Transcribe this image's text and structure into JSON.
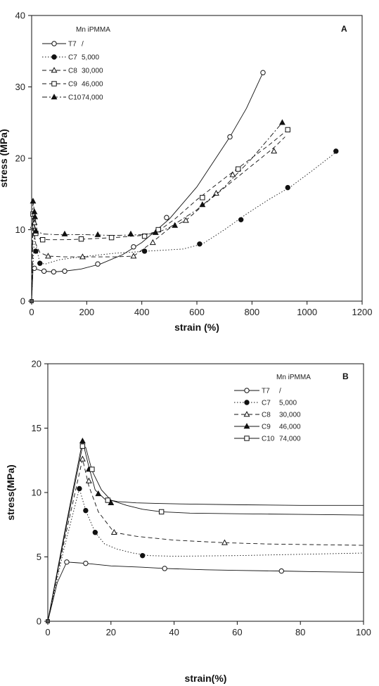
{
  "chart_data": [
    {
      "type": "line",
      "panel_letter": "A",
      "legend_header": "Mn iPMMA",
      "xlabel": "strain (%)",
      "ylabel": "stress (MPa)",
      "xlim": [
        0,
        1200
      ],
      "ylim": [
        0,
        40
      ],
      "xticks": [
        0,
        200,
        400,
        600,
        800,
        1000,
        1200
      ],
      "yticks": [
        0,
        10,
        20,
        30,
        40
      ],
      "grid": false,
      "legend_position": "top-left",
      "series": [
        {
          "name": "T7",
          "mn": "/",
          "marker": "circle-open",
          "dash": "solid",
          "x": [
            0,
            5,
            15,
            40,
            80,
            120,
            180,
            250,
            330,
            400,
            440,
            500,
            600,
            720,
            780,
            840
          ],
          "y": [
            0,
            4.6,
            4.5,
            4.2,
            4.1,
            4.2,
            4.5,
            5.2,
            6.5,
            8.2,
            9.5,
            11.5,
            16,
            23,
            27,
            32
          ],
          "marker_x": [
            10,
            45,
            80,
            120,
            240,
            370,
            490,
            720,
            840
          ],
          "marker_y": [
            4.6,
            4.2,
            4.1,
            4.2,
            5.2,
            7.6,
            11.7,
            23,
            32
          ]
        },
        {
          "name": "C7",
          "mn": "5,000",
          "marker": "circle-filled",
          "dash": "dot",
          "x": [
            0,
            10,
            20,
            30,
            50,
            100,
            180,
            300,
            420,
            550,
            620,
            700,
            780,
            860,
            940,
            1020,
            1110
          ],
          "y": [
            0,
            9.3,
            7.0,
            5.3,
            5.2,
            5.8,
            6.2,
            6.7,
            7.0,
            7.3,
            8.0,
            10.0,
            12.2,
            14.2,
            16.0,
            18.3,
            21
          ],
          "marker_x": [
            15,
            30,
            410,
            610,
            760,
            930,
            1105
          ],
          "marker_y": [
            7.0,
            5.3,
            7.0,
            8.0,
            11.4,
            15.9,
            21
          ]
        },
        {
          "name": "C8",
          "mn": "30,000",
          "marker": "triangle-open",
          "dash": "dash",
          "x": [
            0,
            5,
            15,
            30,
            60,
            120,
            200,
            300,
            370,
            430,
            500,
            560,
            640,
            720,
            800,
            880,
            920
          ],
          "y": [
            0,
            10.5,
            8.0,
            6.8,
            6.3,
            6.2,
            6.2,
            6.2,
            6.3,
            8.0,
            10.2,
            11.3,
            14.0,
            16.5,
            19.0,
            21.5,
            23
          ],
          "marker_x": [
            5,
            10,
            60,
            185,
            370,
            440,
            560,
            670,
            730,
            880
          ],
          "marker_y": [
            10.5,
            11.0,
            6.3,
            6.2,
            6.3,
            8.2,
            11.3,
            15.1,
            17.7,
            21
          ]
        },
        {
          "name": "C9",
          "mn": "46,000",
          "marker": "square-open",
          "dash": "dash",
          "x": [
            0,
            5,
            15,
            30,
            60,
            120,
            200,
            300,
            400,
            460,
            520,
            600,
            700,
            780,
            860,
            930
          ],
          "y": [
            0,
            12.2,
            9.5,
            8.7,
            8.6,
            8.6,
            8.7,
            8.9,
            9.2,
            9.8,
            11.5,
            14.2,
            17.2,
            19.5,
            21.8,
            24
          ],
          "marker_x": [
            5,
            15,
            40,
            180,
            290,
            410,
            460,
            620,
            750,
            930
          ],
          "marker_y": [
            12.2,
            9.5,
            8.6,
            8.7,
            8.9,
            9.1,
            10,
            14.5,
            18.5,
            24
          ]
        },
        {
          "name": "C10",
          "mn": "74,000",
          "marker": "triangle-filled",
          "dash": "dashdot",
          "x": [
            0,
            5,
            10,
            20,
            40,
            100,
            200,
            300,
            400,
            450,
            500,
            600,
            700,
            800,
            910
          ],
          "y": [
            0,
            14.0,
            12.5,
            9.8,
            9.4,
            9.3,
            9.3,
            9.2,
            9.3,
            9.5,
            10.3,
            12.8,
            16.0,
            20.0,
            25
          ],
          "marker_x": [
            5,
            10,
            12,
            15,
            120,
            240,
            360,
            450,
            520,
            620,
            910
          ],
          "marker_y": [
            14.0,
            12.5,
            11.8,
            9.8,
            9.4,
            9.3,
            9.4,
            9.6,
            10.6,
            13.5,
            25
          ]
        }
      ]
    },
    {
      "type": "line",
      "panel_letter": "B",
      "legend_header": "Mn iPMMA",
      "xlabel": "strain(%)",
      "ylabel": "stress(MPa)",
      "xlim": [
        0,
        100
      ],
      "ylim": [
        0,
        20
      ],
      "xticks": [
        0,
        20,
        40,
        60,
        80,
        100
      ],
      "yticks": [
        0,
        5,
        10,
        15,
        20
      ],
      "grid": false,
      "legend_position": "top-right",
      "series": [
        {
          "name": "T7",
          "mn": "/",
          "marker": "circle-open",
          "dash": "solid",
          "x": [
            0,
            3,
            6,
            9,
            12,
            20,
            30,
            37,
            50,
            60,
            74,
            85,
            100
          ],
          "y": [
            0,
            3.0,
            4.6,
            4.55,
            4.5,
            4.3,
            4.2,
            4.1,
            4.0,
            3.95,
            3.9,
            3.85,
            3.8
          ],
          "marker_x": [
            6,
            12,
            37,
            74
          ],
          "marker_y": [
            4.6,
            4.5,
            4.1,
            3.9
          ]
        },
        {
          "name": "C7",
          "mn": "5,000",
          "marker": "circle-filled",
          "dash": "dot",
          "x": [
            0,
            5,
            10,
            12,
            15,
            18,
            22,
            27,
            32,
            40,
            60,
            80,
            100
          ],
          "y": [
            0,
            5.5,
            10.3,
            8.6,
            6.9,
            6.0,
            5.6,
            5.3,
            5.1,
            5.05,
            5.1,
            5.2,
            5.3
          ],
          "marker_x": [
            10,
            12,
            15,
            30
          ],
          "marker_y": [
            10.3,
            8.6,
            6.9,
            5.1
          ]
        },
        {
          "name": "C8",
          "mn": "30,000",
          "marker": "triangle-open",
          "dash": "dash",
          "x": [
            0,
            5,
            11,
            13,
            16,
            21,
            28,
            40,
            56,
            70,
            85,
            100
          ],
          "y": [
            0,
            6.0,
            12.6,
            10.5,
            8.5,
            6.9,
            6.6,
            6.3,
            6.1,
            6.0,
            5.95,
            5.9
          ],
          "marker_x": [
            11,
            13,
            21,
            56
          ],
          "marker_y": [
            12.6,
            10.9,
            6.9,
            6.1
          ]
        },
        {
          "name": "C9",
          "mn": "46,000",
          "marker": "triangle-filled",
          "dash": "solid",
          "x": [
            0,
            5,
            11,
            13,
            15,
            18,
            22,
            28,
            35,
            45,
            60,
            80,
            100
          ],
          "y": [
            0,
            6.5,
            14.0,
            12.0,
            10.2,
            9.5,
            9.3,
            9.2,
            9.15,
            9.1,
            9.05,
            9.0,
            9.0
          ],
          "marker_x": [
            11,
            13,
            16,
            20
          ],
          "marker_y": [
            14.0,
            11.8,
            9.9,
            9.2
          ]
        },
        {
          "name": "C10",
          "mn": "74,000",
          "marker": "square-open",
          "dash": "solid",
          "x": [
            0,
            5,
            11,
            12,
            14,
            17,
            20,
            25,
            30,
            36,
            45,
            60,
            80,
            100
          ],
          "y": [
            0,
            6.3,
            13.6,
            13.5,
            11.7,
            10.2,
            9.4,
            9.0,
            8.7,
            8.5,
            8.4,
            8.35,
            8.3,
            8.25
          ],
          "marker_x": [
            11,
            14,
            19,
            36
          ],
          "marker_y": [
            13.6,
            11.8,
            9.4,
            8.5
          ]
        }
      ]
    }
  ]
}
